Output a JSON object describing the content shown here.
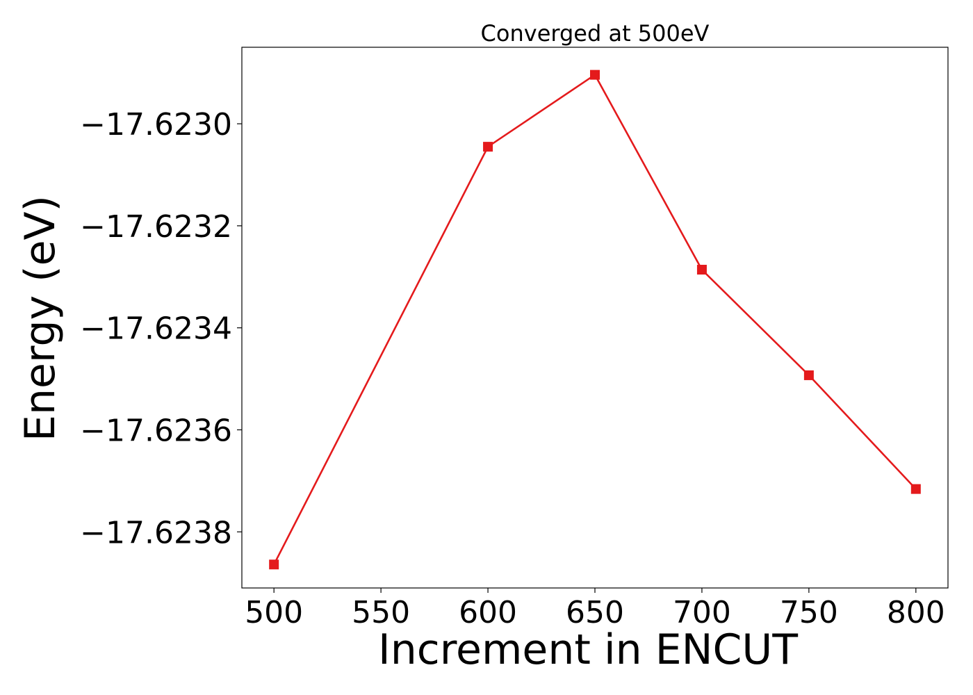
{
  "chart_data": {
    "type": "line",
    "title": "Converged at 500eV",
    "xlabel": "Increment in ENCUT",
    "ylabel": "Energy (eV)",
    "xlim": [
      485,
      815
    ],
    "ylim": [
      -17.62391,
      -17.62285
    ],
    "xticks": [
      500,
      550,
      600,
      650,
      700,
      750,
      800
    ],
    "xtick_labels": [
      "500",
      "550",
      "600",
      "650",
      "700",
      "750",
      "800"
    ],
    "yticks": [
      -17.6238,
      -17.6236,
      -17.6234,
      -17.6232,
      -17.623
    ],
    "ytick_labels": [
      "−17.6238",
      "−17.6236",
      "−17.6234",
      "−17.6232",
      "−17.6230"
    ],
    "grid": false,
    "series": [
      {
        "color": "#e41a1c",
        "marker": "square",
        "x": [
          500,
          600,
          650,
          700,
          750,
          800
        ],
        "y": [
          -17.623864,
          -17.623045,
          -17.622904,
          -17.623286,
          -17.623493,
          -17.623716
        ]
      }
    ]
  }
}
